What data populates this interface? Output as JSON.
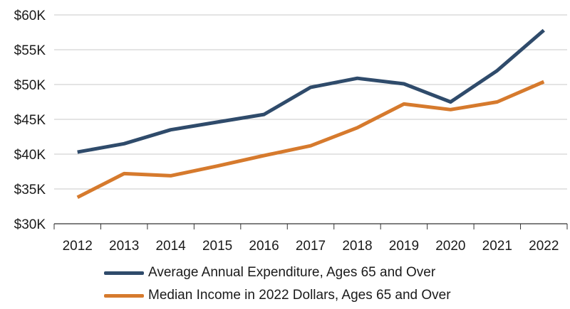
{
  "chart_data": {
    "type": "line",
    "categories": [
      "2012",
      "2013",
      "2014",
      "2015",
      "2016",
      "2017",
      "2018",
      "2019",
      "2020",
      "2021",
      "2022"
    ],
    "series": [
      {
        "name": "Average Annual Expenditure, Ages 65 and Over",
        "color": "#2f4b6b",
        "values": [
          40300,
          41500,
          43500,
          44600,
          45700,
          49600,
          50900,
          50100,
          47500,
          52000,
          57800
        ]
      },
      {
        "name": "Median Income in 2022 Dollars, Ages 65 and Over",
        "color": "#d67a2d",
        "values": [
          33800,
          37200,
          36900,
          38300,
          39800,
          41200,
          43800,
          47200,
          46400,
          47500,
          50400
        ]
      }
    ],
    "y_ticks": [
      "$30K",
      "$35K",
      "$40K",
      "$45K",
      "$50K",
      "$55K",
      "$60K"
    ],
    "ylim": [
      30000,
      60000
    ],
    "grid": true,
    "legend_position": "bottom-center"
  }
}
